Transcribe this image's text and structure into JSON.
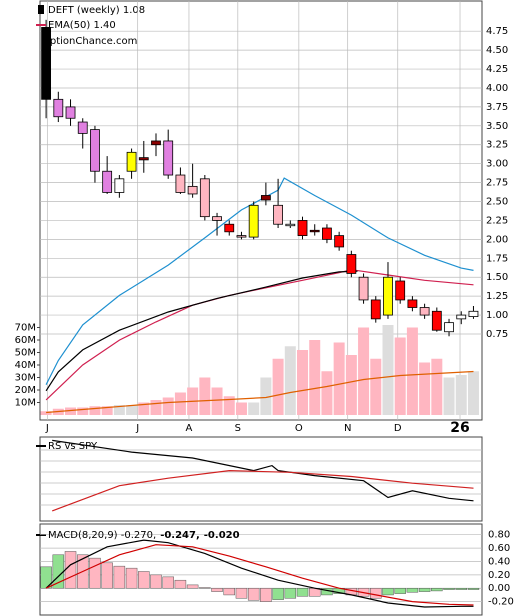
{
  "chart_data": [
    {
      "type": "candlestick",
      "title": "DEFT (weekly) 1.08",
      "subtitle": "OptionChance.com",
      "x": [
        0,
        1,
        2,
        3,
        4,
        5,
        6,
        7,
        8,
        9,
        10,
        11,
        12,
        13,
        14,
        15,
        16,
        17,
        18,
        19,
        20,
        21,
        22,
        23,
        24,
        25,
        26,
        27,
        28,
        29,
        30,
        31,
        32,
        33,
        34,
        35
      ],
      "open": [
        4.8,
        3.85,
        3.75,
        3.55,
        3.45,
        2.9,
        2.62,
        2.9,
        3.08,
        3.3,
        3.3,
        2.85,
        2.7,
        2.8,
        2.3,
        2.2,
        2.05,
        2.03,
        2.58,
        2.45,
        2.2,
        2.25,
        2.12,
        2.15,
        2.05,
        1.8,
        1.5,
        1.2,
        1.0,
        1.45,
        1.2,
        1.1,
        1.05,
        0.78,
        0.95,
        0.98
      ],
      "high": [
        4.9,
        3.95,
        3.85,
        3.6,
        3.5,
        3.1,
        2.85,
        3.2,
        3.3,
        3.4,
        3.45,
        2.95,
        3.0,
        2.85,
        2.35,
        2.25,
        2.1,
        2.5,
        2.75,
        2.8,
        2.25,
        2.3,
        2.2,
        2.2,
        2.1,
        1.85,
        1.55,
        1.25,
        1.7,
        1.5,
        1.25,
        1.15,
        1.1,
        0.95,
        1.05,
        1.12
      ],
      "low": [
        3.6,
        3.55,
        3.5,
        3.2,
        2.75,
        2.6,
        2.55,
        2.8,
        2.88,
        3.1,
        2.8,
        2.6,
        2.55,
        2.25,
        2.05,
        2.05,
        2.0,
        2.0,
        2.45,
        2.15,
        2.15,
        2.0,
        2.05,
        1.95,
        1.85,
        1.5,
        1.15,
        0.9,
        0.95,
        1.15,
        1.05,
        0.95,
        0.78,
        0.72,
        0.88,
        0.95
      ],
      "close": [
        3.85,
        3.62,
        3.6,
        3.4,
        2.9,
        2.62,
        2.8,
        3.15,
        3.05,
        3.25,
        2.85,
        2.62,
        2.6,
        2.3,
        2.25,
        2.1,
        2.03,
        2.45,
        2.52,
        2.2,
        2.2,
        2.05,
        2.1,
        2.0,
        1.9,
        1.55,
        1.2,
        0.95,
        1.5,
        1.2,
        1.1,
        1.0,
        0.8,
        0.9,
        1.0,
        1.05
      ],
      "colors": [
        "#000000",
        "#e080e0",
        "#e080e0",
        "#e080e0",
        "#e080e0",
        "#e080e0",
        "#ffffff",
        "#ffff00",
        "#8b0000",
        "#8b0000",
        "#e080e0",
        "#ffb6c1",
        "#ffb6c1",
        "#ffb6c1",
        "#ffb6c1",
        "#ff0000",
        "#ffb6c1",
        "#ffff00",
        "#8b0000",
        "#ffb6c1",
        "#ffffff",
        "#ff0000",
        "#8b0000",
        "#ff0000",
        "#ff0000",
        "#ff0000",
        "#ffb6c1",
        "#ff0000",
        "#ffff00",
        "#ff0000",
        "#ff0000",
        "#ffb6c1",
        "#ff0000",
        "#ffffff",
        "#ffffff",
        "#ffffff"
      ],
      "volume": [
        3,
        5,
        6,
        6,
        7,
        7,
        8,
        8,
        10,
        12,
        14,
        18,
        22,
        30,
        22,
        15,
        10,
        10,
        30,
        45,
        55,
        52,
        60,
        35,
        58,
        48,
        70,
        45,
        72,
        62,
        70,
        42,
        45,
        30,
        32,
        35
      ],
      "volume_colors": [
        "#ffb6c1",
        "#ffb6c1",
        "#ffb6c1",
        "#ffb6c1",
        "#ffb6c1",
        "#ffb6c1",
        "#dddddd",
        "#dddddd",
        "#ffb6c1",
        "#ffb6c1",
        "#ffb6c1",
        "#ffb6c1",
        "#ffb6c1",
        "#ffb6c1",
        "#ffb6c1",
        "#ffb6c1",
        "#ffb6c1",
        "#dddddd",
        "#dddddd",
        "#ffb6c1",
        "#dddddd",
        "#ffb6c1",
        "#ffb6c1",
        "#ffb6c1",
        "#ffb6c1",
        "#ffb6c1",
        "#ffb6c1",
        "#ffb6c1",
        "#dddddd",
        "#ffb6c1",
        "#ffb6c1",
        "#ffb6c1",
        "#ffb6c1",
        "#dddddd",
        "#dddddd",
        "#dddddd"
      ],
      "lines": [
        {
          "color": "#1e90d0",
          "x": [
            0,
            1,
            3,
            6,
            10,
            13,
            16,
            19,
            19.5,
            22,
            25,
            28,
            31,
            34,
            35
          ],
          "values": [
            0.08,
            0.4,
            0.87,
            1.26,
            1.66,
            2.02,
            2.39,
            2.65,
            2.81,
            2.58,
            2.32,
            2.02,
            1.79,
            1.62,
            1.59
          ]
        },
        {
          "name": "EMA(50) 1.40",
          "color": "#d02050",
          "x": [
            0,
            3,
            6,
            9,
            12,
            15,
            18,
            21,
            24,
            25,
            28,
            31,
            35
          ],
          "values": [
            -0.12,
            0.34,
            0.67,
            0.91,
            1.13,
            1.26,
            1.36,
            1.46,
            1.56,
            1.6,
            1.53,
            1.46,
            1.4
          ]
        },
        {
          "color": "#000000",
          "x": [
            0,
            1,
            3,
            6,
            10,
            14,
            18,
            21,
            24,
            25.5
          ],
          "values": [
            0.0,
            0.25,
            0.54,
            0.8,
            1.04,
            1.22,
            1.37,
            1.49,
            1.57,
            1.58
          ]
        },
        {
          "color": "#e06000",
          "axis": "y2",
          "x": [
            0,
            5,
            10,
            15,
            18,
            20,
            23,
            26,
            29,
            35
          ],
          "values": [
            2,
            6,
            10,
            12.4,
            14,
            18,
            22.8,
            28.4,
            31.6,
            34.8
          ]
        }
      ],
      "xlim": [
        -0.5,
        35.7
      ],
      "xticks": [
        {
          "value": 0.1,
          "label": "J"
        },
        {
          "value": 7.5,
          "label": "J"
        },
        {
          "value": 11.7,
          "label": "A"
        },
        {
          "value": 15.7,
          "label": "S"
        },
        {
          "value": 20.7,
          "label": "O"
        },
        {
          "value": 24.7,
          "label": "N"
        },
        {
          "value": 28.8,
          "label": "D"
        },
        {
          "value": 33.9,
          "label": "26"
        }
      ],
      "ylim": [
        -0.32,
        5.03
      ],
      "yticks": [
        0.75,
        {
          "value": 1.0,
          "label": "1.00"
        },
        1.25,
        {
          "value": 1.5,
          "label": "1.50"
        },
        1.75,
        {
          "value": 2.0,
          "label": "2.00"
        },
        2.25,
        {
          "value": 2.5,
          "label": "2.50"
        },
        2.75,
        {
          "value": 3.0,
          "label": "3.00"
        },
        3.25,
        {
          "value": 3.5,
          "label": "3.50"
        },
        3.75,
        {
          "value": 4.0,
          "label": "4.00"
        },
        4.25,
        {
          "value": 4.5,
          "label": "4.50"
        },
        4.75
      ],
      "y2lim": [
        0,
        324
      ],
      "y2ticks": [
        {
          "value": 10,
          "label": "10M"
        },
        {
          "value": 20,
          "label": "20M"
        },
        {
          "value": 30,
          "label": "30M"
        },
        {
          "value": 40,
          "label": "40M"
        },
        {
          "value": 50,
          "label": "50M"
        },
        {
          "value": 60,
          "label": "60M"
        },
        {
          "value": 70,
          "label": "70M"
        }
      ],
      "grid": true
    },
    {
      "type": "line",
      "title": "RS vs SPY",
      "ylim": [
        0,
        100
      ],
      "xlim": [
        -0.5,
        35.7
      ],
      "series": [
        {
          "color": "#000000",
          "x": [
            0.5,
            7,
            12,
            17,
            18.5,
            19,
            22,
            26,
            28,
            30,
            33,
            35
          ],
          "values": [
            96,
            82,
            75,
            60,
            66,
            60,
            54,
            48,
            28,
            36,
            27,
            24
          ]
        },
        {
          "color": "#d02020",
          "x": [
            0.5,
            6,
            10,
            15,
            20,
            25,
            30,
            35
          ],
          "values": [
            12,
            42,
            51,
            60,
            58,
            53,
            45,
            39
          ]
        }
      ]
    },
    {
      "type": "macd",
      "legend": [
        {
          "text": "MACD(8,20,9) -0.270,",
          "color": "#000000"
        },
        {
          "text": "-0.247,",
          "color": "#d00000"
        },
        {
          "text": "-0.020",
          "color": "#2050c0"
        }
      ],
      "xlim": [
        -0.5,
        35.7
      ],
      "ylim": [
        -0.4,
        0.96
      ],
      "yticks": [
        {
          "value": 0.8,
          "label": "0.80"
        },
        {
          "value": 0.6,
          "label": "0.60"
        },
        {
          "value": 0.4,
          "label": "0.40"
        },
        {
          "value": 0.2,
          "label": "0.20"
        },
        {
          "value": 0,
          "label": "0.00"
        },
        {
          "value": -0.2,
          "label": "-0.20"
        }
      ],
      "histogram": [
        0.32,
        0.5,
        0.55,
        0.5,
        0.45,
        0.38,
        0.33,
        0.3,
        0.25,
        0.2,
        0.17,
        0.12,
        0.05,
        0.01,
        -0.05,
        -0.1,
        -0.15,
        -0.18,
        -0.2,
        -0.17,
        -0.15,
        -0.12,
        -0.12,
        -0.1,
        -0.08,
        -0.1,
        -0.12,
        -0.15,
        -0.1,
        -0.08,
        -0.06,
        -0.05,
        -0.04,
        -0.02,
        -0.02,
        -0.02
      ],
      "histogram_colors": [
        "#90e090",
        "#90e090",
        "#ffb6c1",
        "#ffb6c1",
        "#ffb6c1",
        "#ffb6c1",
        "#ffb6c1",
        "#ffb6c1",
        "#ffb6c1",
        "#ffb6c1",
        "#ffb6c1",
        "#ffb6c1",
        "#ffb6c1",
        "#ffb6c1",
        "#ffb6c1",
        "#ffb6c1",
        "#ffb6c1",
        "#ffb6c1",
        "#ffb6c1",
        "#90e090",
        "#90e090",
        "#90e090",
        "#ffb6c1",
        "#90e090",
        "#90e090",
        "#ffb6c1",
        "#ffb6c1",
        "#ffb6c1",
        "#90e090",
        "#90e090",
        "#90e090",
        "#90e090",
        "#90e090",
        "#90e090",
        "#90e090",
        "#90e090"
      ],
      "series": [
        {
          "color": "#000000",
          "x": [
            0,
            2,
            5,
            8,
            10,
            13,
            16,
            19,
            22,
            25,
            28,
            31,
            34,
            35
          ],
          "values": [
            0,
            0.35,
            0.62,
            0.72,
            0.68,
            0.52,
            0.3,
            0.12,
            0,
            -0.1,
            -0.22,
            -0.28,
            -0.27,
            -0.27
          ]
        },
        {
          "color": "#d00000",
          "x": [
            0,
            3,
            6,
            9,
            12,
            15,
            18,
            21,
            24,
            27,
            30,
            33,
            35
          ],
          "values": [
            0,
            0.25,
            0.5,
            0.65,
            0.62,
            0.48,
            0.32,
            0.15,
            0,
            -0.1,
            -0.2,
            -0.24,
            -0.25
          ]
        }
      ]
    }
  ]
}
